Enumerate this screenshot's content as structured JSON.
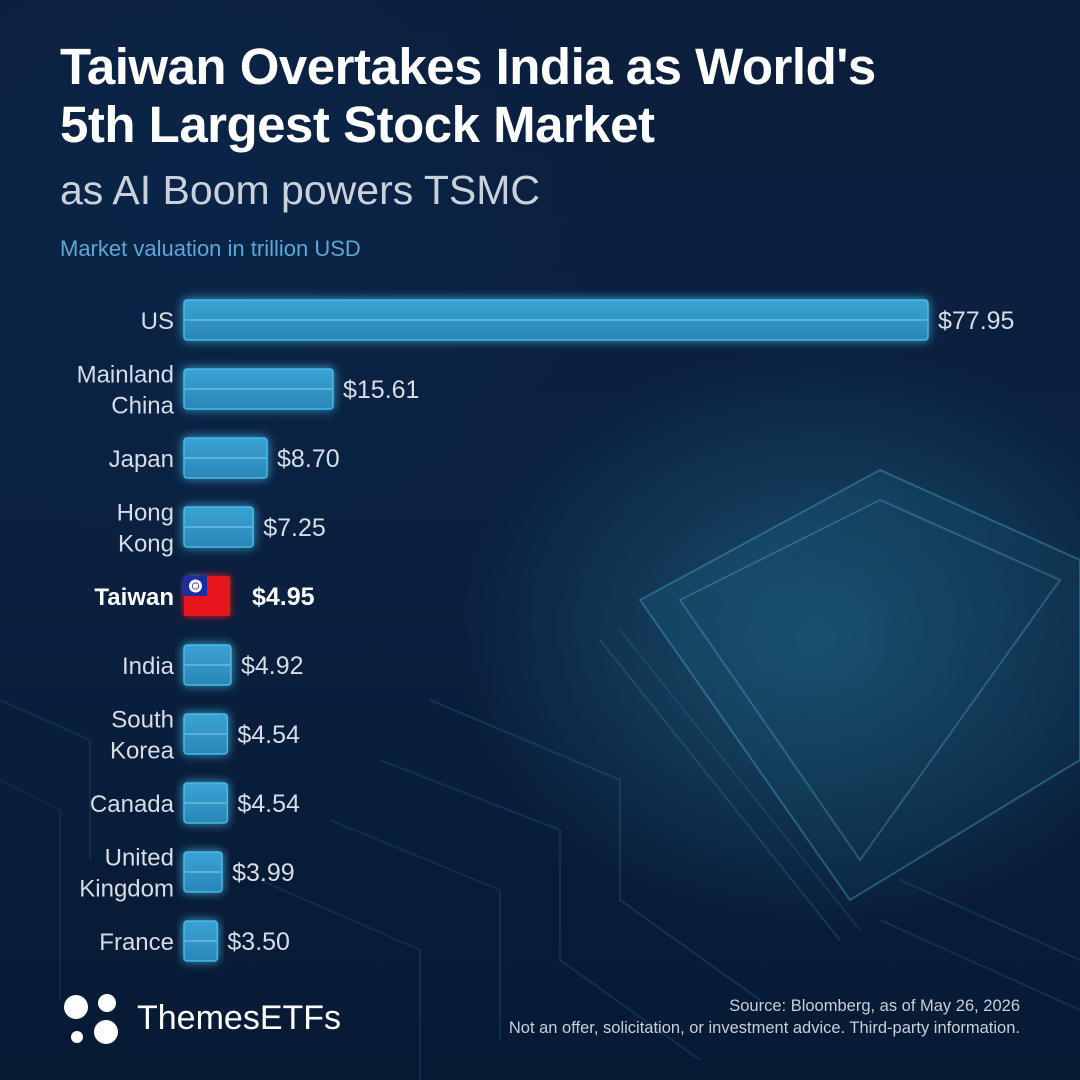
{
  "header": {
    "title_line1": "Taiwan Overtakes India as World's",
    "title_line2": "5th Largest Stock Market",
    "subtitle": "as AI Boom powers TSMC",
    "unit_label": "Market valuation in trillion USD"
  },
  "colors": {
    "bar": "#2f93c4",
    "bar_glow": "#4fc3f0",
    "highlight": "#e8141c",
    "background": "#0a1f3d"
  },
  "chart_data": {
    "type": "bar",
    "orientation": "horizontal",
    "title": "Taiwan Overtakes India as World's 5th Largest Stock Market",
    "subtitle": "as AI Boom powers TSMC",
    "xlabel": "Market valuation in trillion USD",
    "categories": [
      [
        "US"
      ],
      [
        "Mainland",
        "China"
      ],
      [
        "Japan"
      ],
      [
        "Hong",
        "Kong"
      ],
      [
        "Taiwan"
      ],
      [
        "India"
      ],
      [
        "South",
        "Korea"
      ],
      [
        "Canada"
      ],
      [
        "United",
        "Kingdom"
      ],
      [
        "France"
      ]
    ],
    "values": [
      77.95,
      15.61,
      8.7,
      7.25,
      4.95,
      4.92,
      4.54,
      4.54,
      3.99,
      3.5
    ],
    "value_labels": [
      "$77.95",
      "$15.61",
      "$8.70",
      "$7.25",
      "$4.95",
      "$4.92",
      "$4.54",
      "$4.54",
      "$3.99",
      "$3.50"
    ],
    "highlight_index": 4,
    "highlight_icon": "taiwan-flag-icon",
    "xlim": [
      0,
      77.95
    ],
    "grid": false,
    "legend": "none"
  },
  "footer": {
    "brand": "ThemesETFs",
    "brand_icon": "themes-dots-logo-icon",
    "source": "Source: Bloomberg, as of May 26, 2026",
    "disclaimer": "Not an offer, solicitation, or investment advice. Third-party information."
  }
}
